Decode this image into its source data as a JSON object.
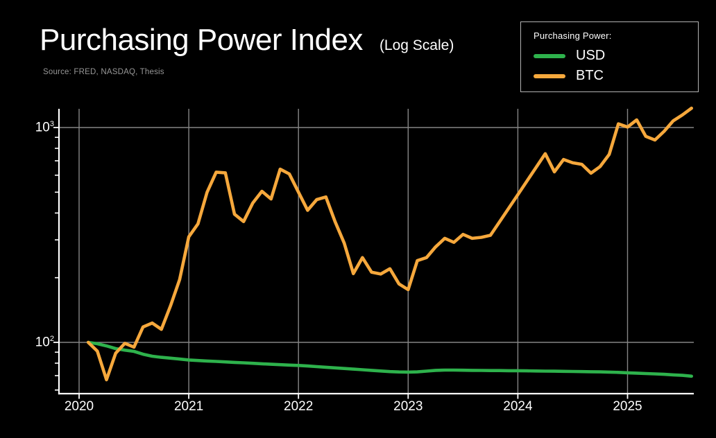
{
  "header": {
    "title": "Purchasing Power Index",
    "subtitle": "(Log Scale)",
    "source": "Source: FRED, NASDAQ, Thesis"
  },
  "legend": {
    "title": "Purchasing Power:",
    "items": [
      {
        "label": "USD",
        "color": "#2eb24c"
      },
      {
        "label": "BTC",
        "color": "#f6a83c"
      }
    ]
  },
  "colors": {
    "background": "#000000",
    "text": "#ffffff",
    "muted_text": "#979797",
    "gridline": "#868686",
    "axis": "#ffffff",
    "usd_line": "#2eb24c",
    "btc_line": "#f6a83c"
  },
  "chart_data": {
    "type": "line",
    "title": "Purchasing Power Index (Log Scale)",
    "y_scale": "log",
    "x_unit": "monthly",
    "x_range": [
      "2020-01",
      "2025-07"
    ],
    "x_ticks": [
      "2020",
      "2021",
      "2022",
      "2023",
      "2024",
      "2025"
    ],
    "y_major_ticks": [
      {
        "label_base": "10",
        "label_exp": "3",
        "value": 1000
      },
      {
        "label_base": "10",
        "label_exp": "2",
        "value": 100
      }
    ],
    "y_minor_ticks": [
      900,
      800,
      700,
      600,
      500,
      400,
      300,
      200,
      90,
      80,
      70,
      60
    ],
    "ylim": [
      58,
      1230
    ],
    "grid": true,
    "legend_position": "top-right",
    "series": [
      {
        "name": "USD",
        "color": "#2eb24c",
        "values": [
          100,
          98.5,
          96.3,
          93.5,
          92,
          90.8,
          88.1,
          86.2,
          85.2,
          84.4,
          83.6,
          82.8,
          82.3,
          81.9,
          81.5,
          81.1,
          80.7,
          80.3,
          79.9,
          79.5,
          79.1,
          78.7,
          78.4,
          78.1,
          77.6,
          77.1,
          76.6,
          76.1,
          75.6,
          75.1,
          74.6,
          74.1,
          73.6,
          73.1,
          72.8,
          72.7,
          72.9,
          73.5,
          74.1,
          74.3,
          74.3,
          74.2,
          74.1,
          74,
          73.9,
          73.9,
          73.8,
          73.8,
          73.7,
          73.6,
          73.5,
          73.4,
          73.3,
          73.2,
          73.1,
          73,
          72.9,
          72.7,
          72.5,
          72.2,
          71.9,
          71.6,
          71.3,
          71,
          70.6,
          70.2,
          69.6
        ]
      },
      {
        "name": "BTC",
        "color": "#f6a83c",
        "values": [
          100,
          91,
          67,
          89,
          99,
          95,
          118,
          123,
          115,
          148,
          196,
          310,
          356,
          500,
          620,
          615,
          395,
          365,
          445,
          505,
          465,
          640,
          608,
          500,
          412,
          462,
          475,
          365,
          290,
          209,
          248,
          212,
          208,
          220,
          187,
          176,
          240,
          248,
          278,
          305,
          292,
          318,
          305,
          308,
          315,
          364,
          421,
          487,
          564,
          653,
          755,
          622,
          710,
          685,
          674,
          613,
          658,
          750,
          1040,
          1005,
          1085,
          910,
          875,
          960,
          1075,
          1145,
          1230
        ]
      }
    ]
  }
}
